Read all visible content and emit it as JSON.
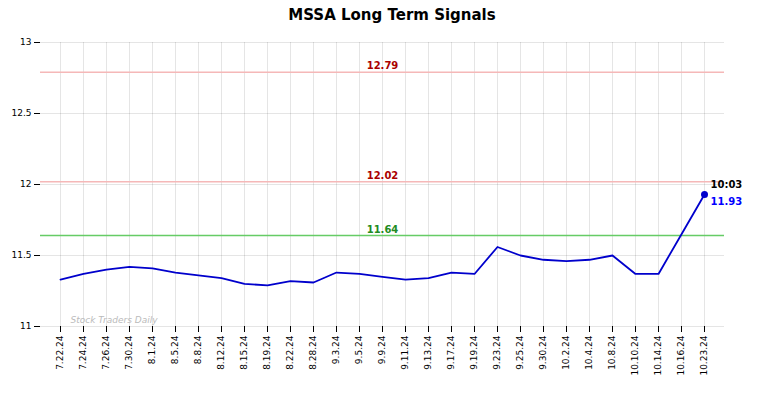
{
  "chart_data": {
    "type": "line",
    "title": "MSSA Long Term Signals",
    "categories": [
      "7.22.24",
      "7.24.24",
      "7.26.24",
      "7.30.24",
      "8.1.24",
      "8.5.24",
      "8.8.24",
      "8.12.24",
      "8.15.24",
      "8.19.24",
      "8.22.24",
      "8.28.24",
      "9.3.24",
      "9.5.24",
      "9.9.24",
      "9.11.24",
      "9.13.24",
      "9.17.24",
      "9.19.24",
      "9.23.24",
      "9.25.24",
      "9.30.24",
      "10.2.24",
      "10.4.24",
      "10.8.24",
      "10.10.24",
      "10.14.24",
      "10.16.24",
      "10.23.24"
    ],
    "values": [
      11.33,
      11.37,
      11.4,
      11.42,
      11.41,
      11.38,
      11.36,
      11.34,
      11.3,
      11.29,
      11.32,
      11.31,
      11.38,
      11.37,
      11.35,
      11.33,
      11.34,
      11.38,
      11.37,
      11.56,
      11.5,
      11.47,
      11.46,
      11.47,
      11.5,
      11.37,
      11.37,
      11.65,
      11.93
    ],
    "color": "#0000cc",
    "ylim": [
      11.0,
      13.0
    ],
    "yticks": [
      11,
      11.5,
      12,
      12.5,
      13
    ],
    "grid": true,
    "hlines": [
      {
        "value": 12.79,
        "label": "12.79",
        "color": "#f5b8b8",
        "label_color": "#aa0000"
      },
      {
        "value": 12.02,
        "label": "12.02",
        "color": "#f5b8b8",
        "label_color": "#aa0000"
      },
      {
        "value": 11.64,
        "label": "11.64",
        "color": "#66cc66",
        "label_color": "#228B22"
      }
    ],
    "annotations": [
      {
        "text": "10:03",
        "color": "#000000"
      },
      {
        "text": "11.93",
        "color": "#0000ff"
      }
    ],
    "watermark": {
      "text": "Stock Traders Daily",
      "color": "#bbbbbb"
    }
  }
}
